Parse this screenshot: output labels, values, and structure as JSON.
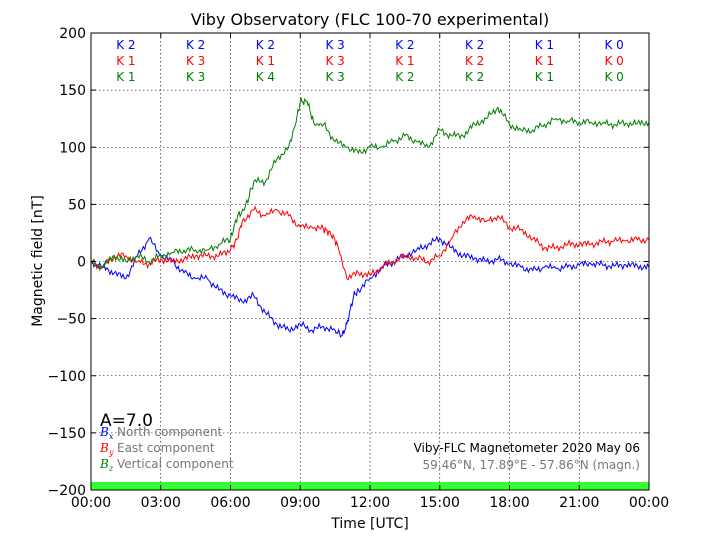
{
  "chart_data": {
    "type": "line",
    "title": "Viby Observatory (FLC 100-70 experimental)",
    "xlabel": "Time [UTC]",
    "ylabel": "Magnetic field [nT]",
    "xlim": [
      0,
      24
    ],
    "ylim": [
      -200,
      200
    ],
    "xticks": [
      0,
      3,
      6,
      9,
      12,
      15,
      18,
      21,
      24
    ],
    "xtick_labels": [
      "00:00",
      "03:00",
      "06:00",
      "09:00",
      "12:00",
      "15:00",
      "18:00",
      "21:00",
      "00:00"
    ],
    "yticks": [
      -200,
      -150,
      -100,
      -50,
      0,
      50,
      100,
      150,
      200
    ],
    "ytick_labels": [
      "−200",
      "−150",
      "−100",
      "−50",
      "0",
      "50",
      "100",
      "150",
      "200"
    ],
    "grid": true,
    "series": [
      {
        "name": "North component",
        "symbol": "B",
        "subscript": "x",
        "color": "#0000ff",
        "x": [
          0,
          0.5,
          1,
          1.5,
          2,
          2.5,
          3,
          3.5,
          4,
          4.5,
          5,
          5.5,
          6,
          6.5,
          7,
          7.5,
          8,
          8.5,
          9,
          9.5,
          10,
          10.5,
          10.8,
          11,
          11.3,
          11.5,
          12,
          12.5,
          13,
          13.5,
          14,
          14.5,
          15,
          15.5,
          16,
          16.5,
          17,
          17.5,
          18,
          18.5,
          19,
          19.5,
          20,
          20.5,
          21,
          21.5,
          22,
          22.5,
          23,
          23.5,
          24
        ],
        "y": [
          0,
          -5,
          -10,
          -15,
          5,
          20,
          5,
          0,
          -10,
          -15,
          -15,
          -25,
          -30,
          -35,
          -30,
          -45,
          -55,
          -60,
          -55,
          -60,
          -57,
          -60,
          -65,
          -55,
          -30,
          -25,
          -15,
          -5,
          0,
          5,
          10,
          15,
          20,
          12,
          5,
          3,
          0,
          2,
          -2,
          -5,
          -8,
          -5,
          -6,
          -5,
          -3,
          -2,
          -3,
          -4,
          -3,
          -4,
          -5
        ]
      },
      {
        "name": "East component",
        "symbol": "B",
        "subscript": "y",
        "color": "#ff0000",
        "x": [
          0,
          0.5,
          1,
          1.5,
          2,
          2.5,
          3,
          3.5,
          4,
          4.5,
          5,
          5.5,
          6,
          6.3,
          6.5,
          7,
          7.5,
          8,
          8.5,
          9,
          9.5,
          10,
          10.3,
          10.6,
          11,
          11.5,
          12,
          12.5,
          13,
          13.5,
          14,
          14.5,
          15,
          15.5,
          16,
          16.5,
          17,
          17.5,
          18,
          18.5,
          19,
          19.5,
          20,
          20.5,
          21,
          21.5,
          22,
          22.5,
          23,
          23.5,
          24
        ],
        "y": [
          0,
          -5,
          5,
          5,
          0,
          -2,
          2,
          0,
          2,
          5,
          5,
          5,
          10,
          20,
          35,
          45,
          40,
          45,
          40,
          30,
          30,
          28,
          25,
          15,
          -15,
          -10,
          -12,
          -5,
          0,
          5,
          3,
          0,
          5,
          20,
          35,
          40,
          35,
          40,
          30,
          28,
          20,
          12,
          12,
          15,
          15,
          15,
          17,
          18,
          18,
          19,
          19
        ]
      },
      {
        "name": "Vertical component",
        "symbol": "B",
        "subscript": "z",
        "color": "#008000",
        "x": [
          0,
          0.5,
          1,
          1.5,
          2,
          2.5,
          3,
          3.5,
          4,
          4.5,
          5,
          5.5,
          6,
          6.3,
          6.6,
          7,
          7.5,
          8,
          8.5,
          8.8,
          9,
          9.3,
          9.6,
          10,
          10.5,
          11,
          11.5,
          12,
          12.5,
          13,
          13.5,
          14,
          14.5,
          15,
          15.5,
          16,
          16.5,
          17,
          17.5,
          18,
          18.5,
          19,
          19.5,
          20,
          20.5,
          21,
          21.5,
          22,
          22.5,
          23,
          23.5,
          24
        ],
        "y": [
          0,
          -5,
          5,
          0,
          5,
          0,
          5,
          8,
          10,
          10,
          10,
          15,
          20,
          40,
          45,
          70,
          70,
          90,
          100,
          120,
          140,
          140,
          120,
          120,
          105,
          100,
          95,
          100,
          100,
          105,
          110,
          105,
          100,
          115,
          110,
          110,
          120,
          125,
          135,
          120,
          115,
          115,
          120,
          125,
          123,
          122,
          122,
          121,
          120,
          121,
          121,
          122
        ]
      }
    ],
    "k_index_rows": [
      {
        "color": "#0000ff",
        "labels": [
          "K 2",
          "K 2",
          "K 2",
          "K 3",
          "K 2",
          "K 2",
          "K 1",
          "K 0"
        ]
      },
      {
        "color": "#ff0000",
        "labels": [
          "K 1",
          "K 3",
          "K 1",
          "K 3",
          "K 1",
          "K 2",
          "K 1",
          "K 0"
        ]
      },
      {
        "color": "#008000",
        "labels": [
          "K 1",
          "K 3",
          "K 4",
          "K 3",
          "K 2",
          "K 2",
          "K 1",
          "K 0"
        ]
      }
    ],
    "a_index": "A=7.0",
    "status_bar_color": "#33ff33",
    "info_line_1": "Viby-FLC Magnetometer 2020 May 06",
    "info_line_2": "59.46°N, 17.89°E - 57.86°N (magn.)"
  }
}
